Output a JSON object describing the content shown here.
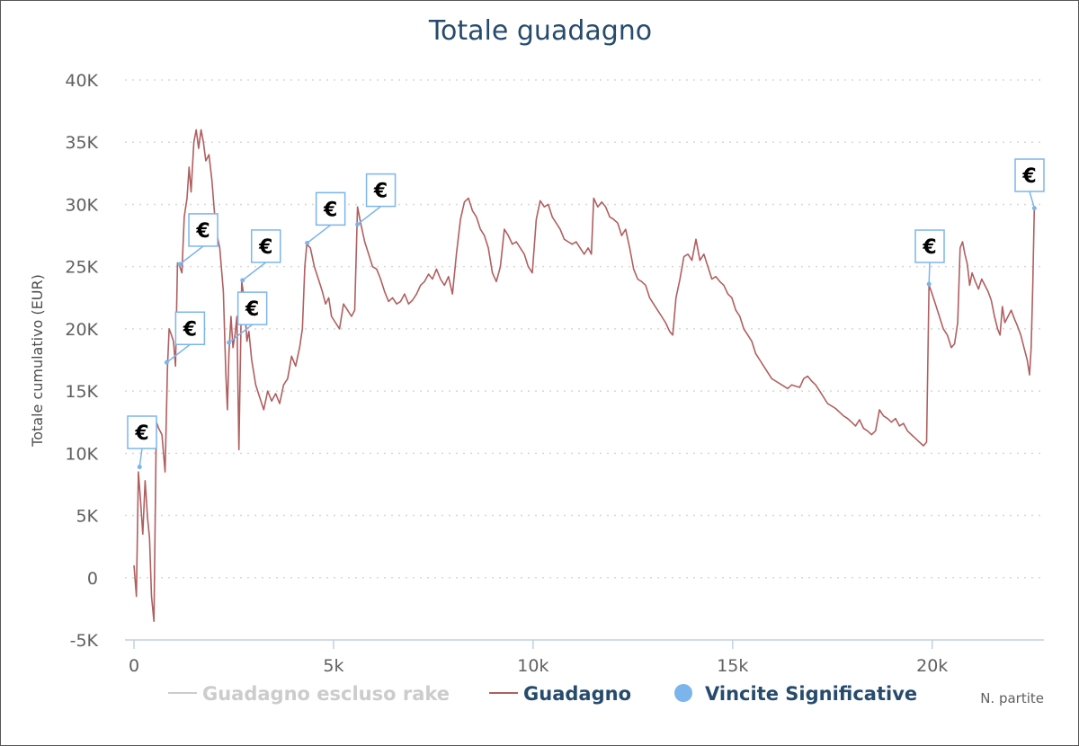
{
  "chart_data": {
    "type": "line",
    "title": "Totale guadagno",
    "xlabel": "N. partite",
    "ylabel": "Totale cumulativo (EUR)",
    "xlim": [
      0,
      22800
    ],
    "ylim": [
      -5000,
      40000
    ],
    "x_ticks": [
      0,
      5000,
      10000,
      15000,
      20000
    ],
    "x_tick_labels": [
      "0",
      "5k",
      "10k",
      "15k",
      "20k"
    ],
    "y_ticks": [
      -5000,
      0,
      5000,
      10000,
      15000,
      20000,
      25000,
      30000,
      35000,
      40000
    ],
    "y_tick_labels": [
      "-5K",
      "0",
      "5K",
      "10K",
      "15K",
      "20K",
      "25K",
      "30K",
      "35K",
      "40K"
    ],
    "grid": "horizontal-dotted",
    "legend_position": "bottom",
    "legend": [
      {
        "name": "Guadagno escluso rake",
        "color": "#cccccc",
        "kind": "line",
        "hidden": true
      },
      {
        "name": "Guadagno",
        "color": "#b05f60",
        "kind": "line",
        "hidden": false
      },
      {
        "name": "Vincite Significative",
        "color": "#7cb5ec",
        "kind": "marker",
        "hidden": false
      }
    ],
    "series": [
      {
        "name": "Guadagno",
        "color": "#b05f60",
        "points": [
          [
            0,
            1000
          ],
          [
            60,
            -1500
          ],
          [
            110,
            8500
          ],
          [
            170,
            6000
          ],
          [
            220,
            3500
          ],
          [
            280,
            7800
          ],
          [
            340,
            4800
          ],
          [
            390,
            3200
          ],
          [
            440,
            -1500
          ],
          [
            500,
            -3500
          ],
          [
            560,
            12500
          ],
          [
            620,
            12000
          ],
          [
            700,
            11500
          ],
          [
            780,
            8500
          ],
          [
            840,
            17000
          ],
          [
            880,
            20000
          ],
          [
            940,
            19500
          ],
          [
            990,
            19000
          ],
          [
            1040,
            17000
          ],
          [
            1090,
            25300
          ],
          [
            1150,
            25000
          ],
          [
            1200,
            24500
          ],
          [
            1260,
            29000
          ],
          [
            1330,
            30500
          ],
          [
            1380,
            33000
          ],
          [
            1430,
            31000
          ],
          [
            1500,
            35000
          ],
          [
            1560,
            36000
          ],
          [
            1620,
            34500
          ],
          [
            1680,
            36000
          ],
          [
            1740,
            35000
          ],
          [
            1800,
            33500
          ],
          [
            1880,
            34000
          ],
          [
            1950,
            32000
          ],
          [
            2050,
            28000
          ],
          [
            2150,
            26500
          ],
          [
            2240,
            23000
          ],
          [
            2300,
            16500
          ],
          [
            2340,
            13500
          ],
          [
            2380,
            18000
          ],
          [
            2430,
            21000
          ],
          [
            2480,
            18500
          ],
          [
            2530,
            19500
          ],
          [
            2580,
            21000
          ],
          [
            2630,
            10300
          ],
          [
            2700,
            23800
          ],
          [
            2760,
            22500
          ],
          [
            2830,
            19000
          ],
          [
            2880,
            19800
          ],
          [
            2950,
            17500
          ],
          [
            3050,
            15500
          ],
          [
            3150,
            14500
          ],
          [
            3250,
            13500
          ],
          [
            3350,
            15000
          ],
          [
            3450,
            14200
          ],
          [
            3550,
            14800
          ],
          [
            3650,
            14000
          ],
          [
            3750,
            15500
          ],
          [
            3850,
            16000
          ],
          [
            3950,
            17800
          ],
          [
            4050,
            17000
          ],
          [
            4150,
            18500
          ],
          [
            4220,
            20000
          ],
          [
            4280,
            25000
          ],
          [
            4330,
            26800
          ],
          [
            4420,
            26500
          ],
          [
            4520,
            25000
          ],
          [
            4620,
            24000
          ],
          [
            4720,
            23000
          ],
          [
            4800,
            22000
          ],
          [
            4880,
            22500
          ],
          [
            4950,
            21000
          ],
          [
            5050,
            20500
          ],
          [
            5150,
            20000
          ],
          [
            5250,
            22000
          ],
          [
            5350,
            21500
          ],
          [
            5450,
            21000
          ],
          [
            5530,
            21500
          ],
          [
            5600,
            29800
          ],
          [
            5680,
            28500
          ],
          [
            5780,
            27000
          ],
          [
            5880,
            26000
          ],
          [
            5980,
            25000
          ],
          [
            6080,
            24800
          ],
          [
            6180,
            24000
          ],
          [
            6280,
            23000
          ],
          [
            6380,
            22200
          ],
          [
            6480,
            22500
          ],
          [
            6580,
            22000
          ],
          [
            6680,
            22200
          ],
          [
            6780,
            22800
          ],
          [
            6880,
            22000
          ],
          [
            6980,
            22300
          ],
          [
            7080,
            22800
          ],
          [
            7180,
            23500
          ],
          [
            7280,
            23800
          ],
          [
            7380,
            24400
          ],
          [
            7480,
            24000
          ],
          [
            7580,
            24800
          ],
          [
            7680,
            24000
          ],
          [
            7780,
            23500
          ],
          [
            7880,
            24200
          ],
          [
            7980,
            22800
          ],
          [
            8080,
            26000
          ],
          [
            8180,
            28800
          ],
          [
            8280,
            30200
          ],
          [
            8380,
            30500
          ],
          [
            8480,
            29500
          ],
          [
            8580,
            29000
          ],
          [
            8680,
            28000
          ],
          [
            8780,
            27500
          ],
          [
            8880,
            26500
          ],
          [
            8980,
            24500
          ],
          [
            9080,
            23800
          ],
          [
            9180,
            25000
          ],
          [
            9280,
            28000
          ],
          [
            9380,
            27500
          ],
          [
            9480,
            26800
          ],
          [
            9580,
            27000
          ],
          [
            9680,
            26500
          ],
          [
            9780,
            26000
          ],
          [
            9880,
            25000
          ],
          [
            9980,
            24500
          ],
          [
            10080,
            28800
          ],
          [
            10180,
            30300
          ],
          [
            10280,
            29800
          ],
          [
            10380,
            30000
          ],
          [
            10480,
            29000
          ],
          [
            10580,
            28500
          ],
          [
            10680,
            28000
          ],
          [
            10780,
            27200
          ],
          [
            10880,
            27000
          ],
          [
            10980,
            26800
          ],
          [
            11080,
            27000
          ],
          [
            11180,
            26500
          ],
          [
            11280,
            26000
          ],
          [
            11380,
            26500
          ],
          [
            11460,
            26000
          ],
          [
            11520,
            30500
          ],
          [
            11620,
            29800
          ],
          [
            11720,
            30200
          ],
          [
            11820,
            29800
          ],
          [
            11920,
            29000
          ],
          [
            12020,
            28800
          ],
          [
            12120,
            28500
          ],
          [
            12220,
            27500
          ],
          [
            12320,
            28000
          ],
          [
            12420,
            26500
          ],
          [
            12520,
            24800
          ],
          [
            12620,
            24000
          ],
          [
            12720,
            23800
          ],
          [
            12820,
            23500
          ],
          [
            12920,
            22500
          ],
          [
            13020,
            22000
          ],
          [
            13120,
            21500
          ],
          [
            13220,
            21000
          ],
          [
            13320,
            20500
          ],
          [
            13420,
            19800
          ],
          [
            13500,
            19500
          ],
          [
            13580,
            22500
          ],
          [
            13680,
            24000
          ],
          [
            13780,
            25800
          ],
          [
            13880,
            26000
          ],
          [
            13980,
            25500
          ],
          [
            14080,
            27200
          ],
          [
            14180,
            25500
          ],
          [
            14280,
            26000
          ],
          [
            14380,
            25000
          ],
          [
            14480,
            24000
          ],
          [
            14580,
            24200
          ],
          [
            14680,
            23800
          ],
          [
            14780,
            23500
          ],
          [
            14880,
            22800
          ],
          [
            14980,
            22500
          ],
          [
            15080,
            21500
          ],
          [
            15180,
            21000
          ],
          [
            15280,
            20000
          ],
          [
            15380,
            19500
          ],
          [
            15480,
            19000
          ],
          [
            15580,
            18000
          ],
          [
            15680,
            17500
          ],
          [
            15780,
            17000
          ],
          [
            15880,
            16500
          ],
          [
            15980,
            16000
          ],
          [
            16080,
            15800
          ],
          [
            16180,
            15600
          ],
          [
            16280,
            15400
          ],
          [
            16380,
            15200
          ],
          [
            16480,
            15500
          ],
          [
            16580,
            15400
          ],
          [
            16680,
            15300
          ],
          [
            16780,
            16000
          ],
          [
            16880,
            16200
          ],
          [
            16980,
            15800
          ],
          [
            17080,
            15500
          ],
          [
            17180,
            15000
          ],
          [
            17280,
            14500
          ],
          [
            17380,
            14000
          ],
          [
            17480,
            13800
          ],
          [
            17580,
            13600
          ],
          [
            17680,
            13300
          ],
          [
            17780,
            13000
          ],
          [
            17880,
            12800
          ],
          [
            17980,
            12500
          ],
          [
            18080,
            12200
          ],
          [
            18180,
            12700
          ],
          [
            18280,
            12000
          ],
          [
            18380,
            11800
          ],
          [
            18480,
            11500
          ],
          [
            18580,
            11800
          ],
          [
            18680,
            13500
          ],
          [
            18780,
            13000
          ],
          [
            18880,
            12800
          ],
          [
            18980,
            12500
          ],
          [
            19080,
            12800
          ],
          [
            19180,
            12200
          ],
          [
            19280,
            12400
          ],
          [
            19380,
            11800
          ],
          [
            19480,
            11500
          ],
          [
            19580,
            11200
          ],
          [
            19680,
            10900
          ],
          [
            19780,
            10600
          ],
          [
            19860,
            10900
          ],
          [
            19920,
            23500
          ],
          [
            19980,
            23000
          ],
          [
            20080,
            22000
          ],
          [
            20180,
            21000
          ],
          [
            20280,
            20000
          ],
          [
            20380,
            19500
          ],
          [
            20480,
            18500
          ],
          [
            20560,
            18800
          ],
          [
            20640,
            20500
          ],
          [
            20700,
            26500
          ],
          [
            20760,
            27000
          ],
          [
            20820,
            26000
          ],
          [
            20880,
            25200
          ],
          [
            20940,
            23500
          ],
          [
            21000,
            24500
          ],
          [
            21080,
            23800
          ],
          [
            21160,
            23200
          ],
          [
            21240,
            24000
          ],
          [
            21320,
            23500
          ],
          [
            21400,
            23000
          ],
          [
            21480,
            22300
          ],
          [
            21560,
            21000
          ],
          [
            21640,
            20000
          ],
          [
            21700,
            19500
          ],
          [
            21760,
            21800
          ],
          [
            21820,
            20500
          ],
          [
            21900,
            21000
          ],
          [
            21980,
            21500
          ],
          [
            22060,
            20800
          ],
          [
            22140,
            20200
          ],
          [
            22220,
            19500
          ],
          [
            22300,
            18500
          ],
          [
            22380,
            17500
          ],
          [
            22440,
            16300
          ],
          [
            22480,
            18500
          ],
          [
            22520,
            23500
          ],
          [
            22560,
            29700
          ]
        ]
      }
    ],
    "flags": [
      {
        "x": 140,
        "y": 8900,
        "label": "€"
      },
      {
        "x": 820,
        "y": 17300,
        "label": "€"
      },
      {
        "x": 1150,
        "y": 25200,
        "label": "€"
      },
      {
        "x": 2380,
        "y": 18900,
        "label": "€"
      },
      {
        "x": 2720,
        "y": 23900,
        "label": "€"
      },
      {
        "x": 4340,
        "y": 26900,
        "label": "€"
      },
      {
        "x": 5600,
        "y": 28400,
        "label": "€"
      },
      {
        "x": 19920,
        "y": 23600,
        "label": "€"
      },
      {
        "x": 22560,
        "y": 29700,
        "label": "€"
      }
    ]
  }
}
